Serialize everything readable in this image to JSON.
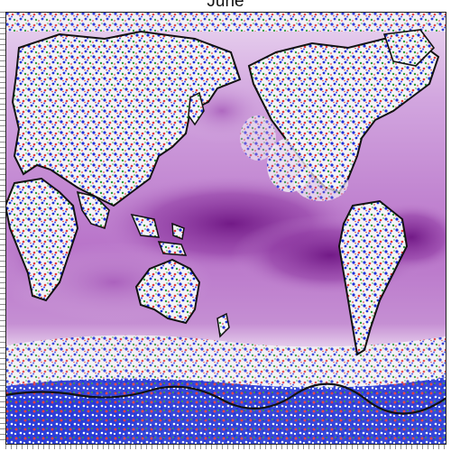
{
  "map": {
    "title": "June",
    "colors": {
      "ocean_deep": "#7a1f8c",
      "ocean_mid": "#b06cc0",
      "ocean_light": "#e6cdee",
      "land_blue": "#1c2fd8",
      "land_red": "#e23a3a",
      "land_green": "#2e9a3a",
      "coastline": "#111111"
    }
  }
}
